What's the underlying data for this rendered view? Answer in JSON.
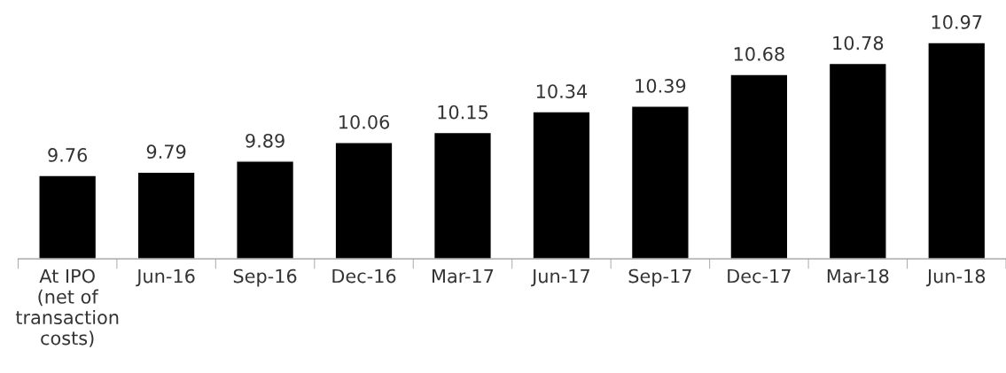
{
  "chart_data": {
    "type": "bar",
    "categories": [
      "At IPO\n(net of\ntransaction\ncosts)",
      "Jun-16",
      "Sep-16",
      "Dec-16",
      "Mar-17",
      "Jun-17",
      "Sep-17",
      "Dec-17",
      "Mar-18",
      "Jun-18"
    ],
    "values": [
      9.76,
      9.79,
      9.89,
      10.06,
      10.15,
      10.34,
      10.39,
      10.68,
      10.78,
      10.97
    ],
    "color": "#000000",
    "ylim": [
      9,
      10.97
    ],
    "tick_labels": "x",
    "data_labels": true,
    "grid": false,
    "legend": false
  }
}
